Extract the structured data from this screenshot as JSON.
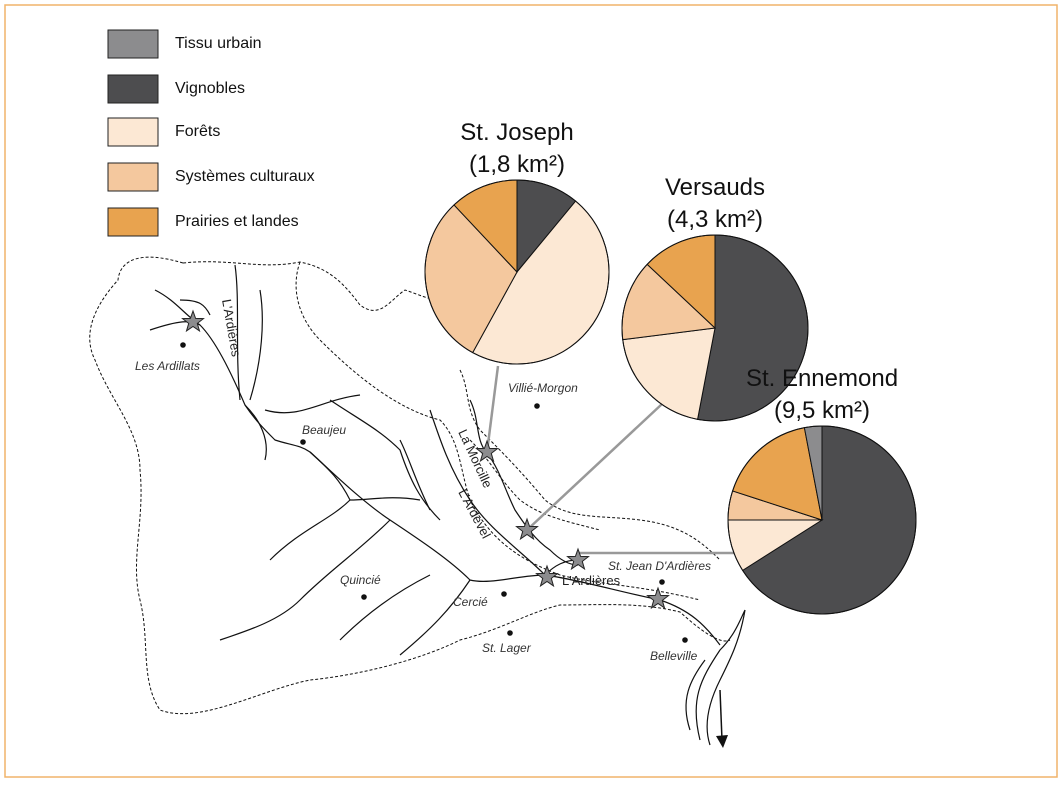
{
  "title_note": null,
  "legend": [
    {
      "label": "Tissu urbain",
      "color": "#8c8c8e"
    },
    {
      "label": "Vignobles",
      "color": "#4d4d4f"
    },
    {
      "label": "Forêts",
      "color": "#fce8d4"
    },
    {
      "label": "Systèmes culturaux",
      "color": "#f4c89e"
    },
    {
      "label": "Prairies et landes",
      "color": "#e8a34f"
    }
  ],
  "pies": [
    {
      "name": "St. Joseph",
      "area": "(1,8 km²)",
      "values": [
        0,
        11,
        47,
        30,
        12
      ]
    },
    {
      "name": "Versauds",
      "area": "(4,3 km²)",
      "values": [
        0,
        53,
        20,
        14,
        13
      ]
    },
    {
      "name": "St. Ennemond",
      "area": "(9,5 km²)",
      "values": [
        3,
        66,
        9,
        5,
        17
      ]
    }
  ],
  "places": [
    "Les Ardillats",
    "Beaujeu",
    "Villié-Morgon",
    "Quincié",
    "Cercié",
    "St. Lager",
    "St. Jean D'Ardières",
    "Belleville"
  ],
  "rivers": [
    "L'Ardières",
    "La Morcille",
    "L'Ardevel",
    "L'Ardières"
  ]
}
